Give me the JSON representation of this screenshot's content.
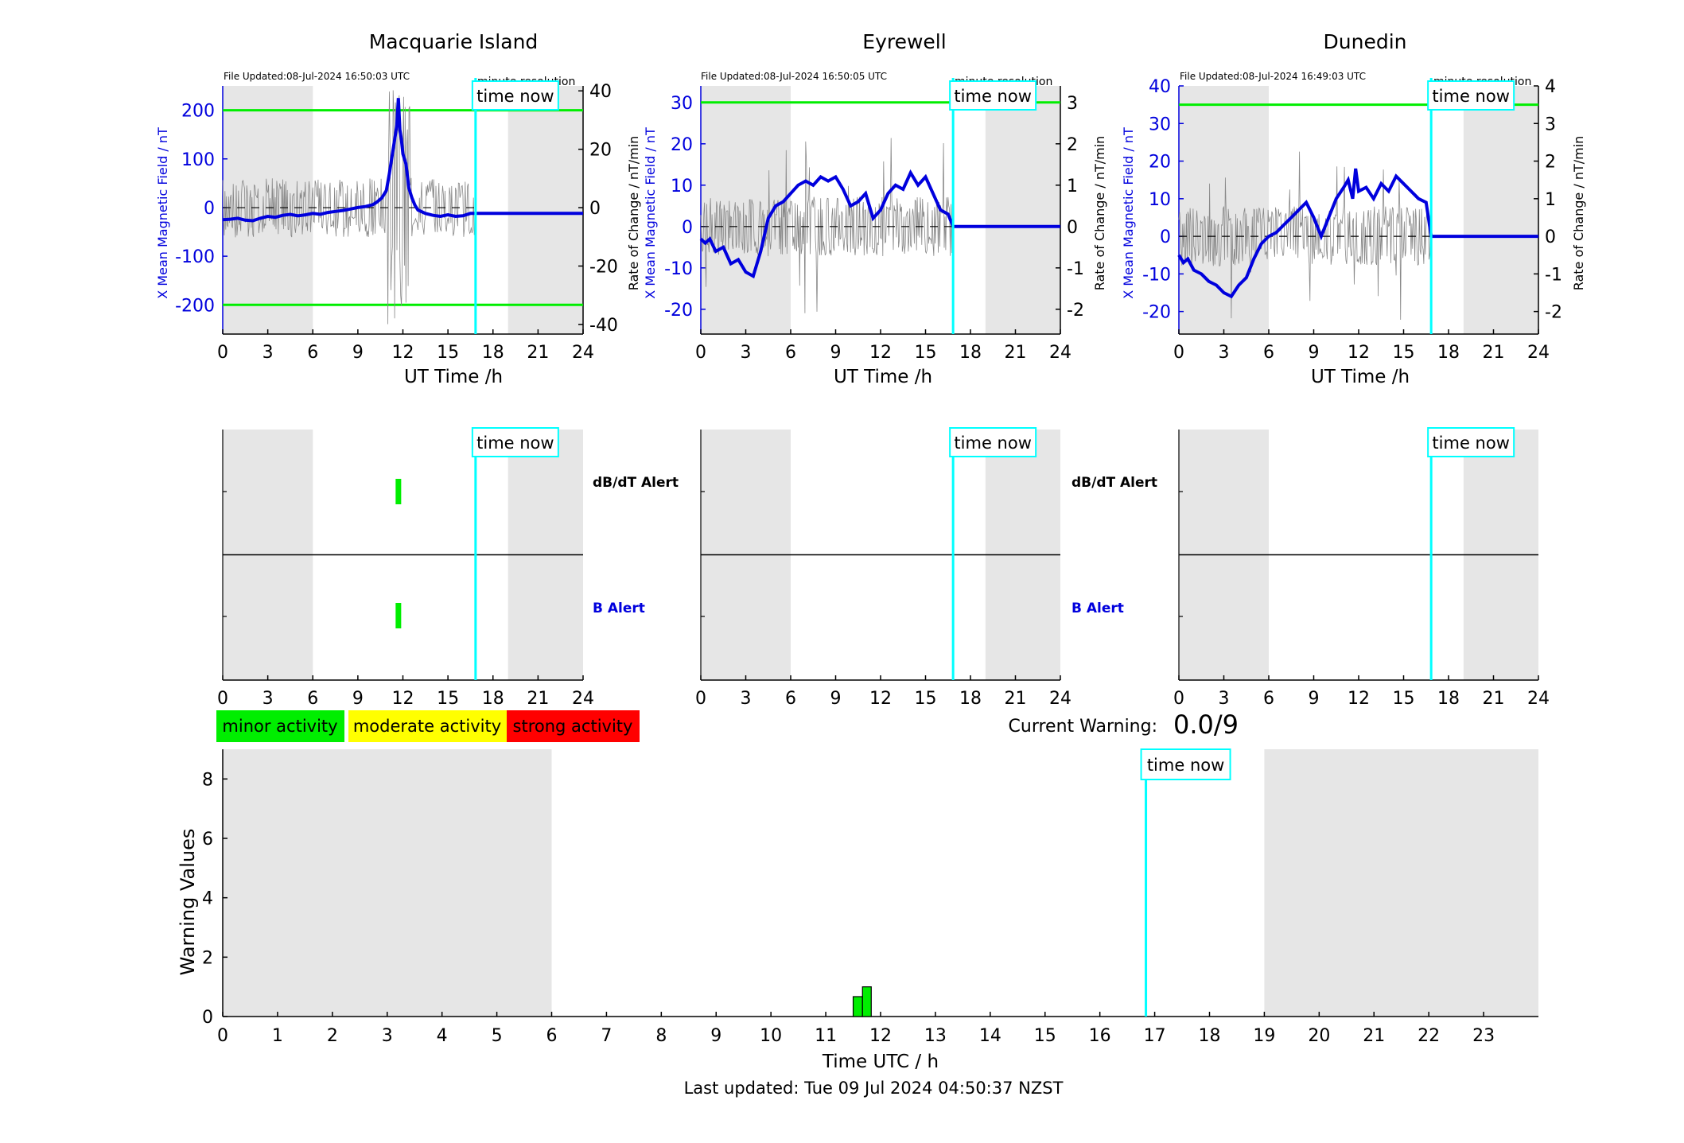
{
  "colors": {
    "blue": "#0000dd",
    "green": "#00ee00",
    "cyan": "#00ffff",
    "gray_shade": "#e6e6e6",
    "yellow": "#ffff00",
    "red": "#ff0000",
    "black": "#000000"
  },
  "common": {
    "x_label": "UT Time /h",
    "x_ticks": [
      "0",
      "3",
      "6",
      "9",
      "12",
      "15",
      "18",
      "21",
      "24"
    ],
    "left_axis_label": "X Mean Magnetic Field / nT",
    "right_axis_label": "Rate of Change / nT/min",
    "resolution_label": "minute resolution",
    "time_now_label": "time now",
    "time_now_hour": 16.84,
    "dbdt_alert_label": "dB/dT Alert",
    "b_alert_label": "B Alert"
  },
  "chart_data": [
    {
      "type": "line",
      "station": "Macquarie Island",
      "file_updated": "File Updated:08-Jul-2024 16:50:03 UTC",
      "xlim": [
        0,
        24
      ],
      "ylim": [
        -260,
        250
      ],
      "y_ticks": [
        "200",
        "100",
        "0",
        "-100",
        "-200"
      ],
      "y_tick_values": [
        200,
        100,
        0,
        -100,
        -200
      ],
      "ylim_right": [
        -43.3,
        41.7
      ],
      "right_ticks": [
        "40",
        "20",
        "0",
        "-20",
        "-40"
      ],
      "right_tick_values": [
        40,
        20,
        0,
        -20,
        -40
      ],
      "threshold_lines": [
        200,
        -200
      ],
      "night_shading": [
        [
          0,
          6
        ],
        [
          19,
          24
        ]
      ],
      "series": [
        {
          "axis": "left",
          "x": [
            0,
            0.5,
            1,
            1.5,
            2,
            2.5,
            3,
            3.5,
            4,
            4.5,
            5,
            5.5,
            6,
            6.5,
            7,
            7.5,
            8,
            8.5,
            9,
            9.5,
            10,
            10.3,
            10.6,
            10.9,
            11.1,
            11.3,
            11.5,
            11.6,
            11.7,
            11.8,
            11.9,
            12,
            12.2,
            12.4,
            12.6,
            12.8,
            13,
            13.5,
            14,
            14.5,
            15,
            15.5,
            16,
            16.5,
            16.84,
            24
          ],
          "values": [
            -25,
            -24,
            -22,
            -26,
            -27,
            -22,
            -18,
            -20,
            -16,
            -14,
            -17,
            -15,
            -12,
            -14,
            -10,
            -8,
            -6,
            -3,
            0,
            2,
            6,
            12,
            20,
            35,
            70,
            110,
            150,
            170,
            225,
            160,
            140,
            110,
            90,
            40,
            20,
            5,
            -5,
            -12,
            -16,
            -18,
            -15,
            -18,
            -17,
            -12,
            -12,
            -12
          ]
        }
      ],
      "alerts": {
        "dbdt_hours": [
          11.7
        ],
        "b_hours": [
          11.7
        ]
      }
    },
    {
      "type": "line",
      "station": "Eyrewell",
      "file_updated": "File Updated:08-Jul-2024 16:50:05 UTC",
      "xlim": [
        0,
        24
      ],
      "ylim": [
        -26,
        34
      ],
      "y_ticks": [
        "30",
        "20",
        "10",
        "0",
        "-10",
        "-20"
      ],
      "y_tick_values": [
        30,
        20,
        10,
        0,
        -10,
        -20
      ],
      "ylim_right": [
        -2.6,
        3.4
      ],
      "right_ticks": [
        "3",
        "2",
        "1",
        "0",
        "-1",
        "-2"
      ],
      "right_tick_values": [
        3,
        2,
        1,
        0,
        -1,
        -2
      ],
      "threshold_lines": [
        30
      ],
      "night_shading": [
        [
          0,
          6
        ],
        [
          19,
          24
        ]
      ],
      "series": [
        {
          "axis": "left",
          "x": [
            0,
            0.3,
            0.6,
            1,
            1.5,
            2,
            2.5,
            3,
            3.5,
            4,
            4.5,
            5,
            5.5,
            6,
            6.5,
            7,
            7.5,
            8,
            8.5,
            9,
            9.5,
            10,
            10.5,
            11,
            11.5,
            12,
            12.5,
            13,
            13.5,
            14,
            14.5,
            15,
            15.5,
            16,
            16.5,
            16.84,
            24
          ],
          "values": [
            -3,
            -4,
            -3,
            -6,
            -5,
            -9,
            -8,
            -11,
            -12,
            -6,
            2,
            5,
            6,
            8,
            10,
            11,
            10,
            12,
            11,
            12,
            9,
            5,
            6,
            8,
            2,
            4,
            8,
            10,
            9,
            13,
            10,
            12,
            8,
            4,
            3,
            0,
            0
          ]
        }
      ],
      "alerts": {
        "dbdt_hours": [],
        "b_hours": []
      }
    },
    {
      "type": "line",
      "station": "Dunedin",
      "file_updated": "File Updated:08-Jul-2024 16:49:03 UTC",
      "xlim": [
        0,
        24
      ],
      "ylim": [
        -26,
        40
      ],
      "y_ticks": [
        "40",
        "30",
        "20",
        "10",
        "0",
        "-10",
        "-20"
      ],
      "y_tick_values": [
        40,
        30,
        20,
        10,
        0,
        -10,
        -20
      ],
      "ylim_right": [
        -2.6,
        4.0
      ],
      "right_ticks": [
        "4",
        "3",
        "2",
        "1",
        "0",
        "-1",
        "-2"
      ],
      "right_tick_values": [
        4,
        3,
        2,
        1,
        0,
        -1,
        -2
      ],
      "threshold_lines": [
        35
      ],
      "night_shading": [
        [
          0,
          6
        ],
        [
          19,
          24
        ]
      ],
      "series": [
        {
          "axis": "left",
          "x": [
            0,
            0.3,
            0.6,
            1,
            1.5,
            2,
            2.5,
            3,
            3.5,
            4,
            4.5,
            5,
            5.5,
            6,
            6.5,
            7,
            7.5,
            8,
            8.5,
            9,
            9.5,
            10,
            10.5,
            11,
            11.3,
            11.6,
            11.8,
            12,
            12.5,
            13,
            13.5,
            14,
            14.5,
            15,
            15.5,
            16,
            16.5,
            16.84,
            24
          ],
          "values": [
            -5,
            -7,
            -6,
            -9,
            -10,
            -12,
            -13,
            -15,
            -16,
            -13,
            -11,
            -6,
            -2,
            0,
            1,
            3,
            5,
            7,
            9,
            5,
            0,
            5,
            10,
            13,
            15,
            10,
            18,
            12,
            13,
            10,
            14,
            12,
            16,
            14,
            12,
            10,
            9,
            0,
            0
          ]
        }
      ],
      "alerts": {
        "dbdt_hours": [],
        "b_hours": []
      }
    },
    {
      "type": "bar",
      "title": "Warning Values",
      "xlabel": "Time UTC / h",
      "ylabel": "Warning Values",
      "xlim": [
        0,
        24
      ],
      "ylim": [
        0,
        9
      ],
      "x_ticks": [
        "0",
        "1",
        "2",
        "3",
        "4",
        "5",
        "6",
        "7",
        "8",
        "9",
        "10",
        "11",
        "12",
        "13",
        "14",
        "15",
        "16",
        "17",
        "18",
        "19",
        "20",
        "21",
        "22",
        "23"
      ],
      "y_ticks": [
        "0",
        "2",
        "4",
        "6",
        "8"
      ],
      "y_tick_values": [
        0,
        2,
        4,
        6,
        8
      ],
      "night_shading": [
        [
          0,
          6
        ],
        [
          19,
          24
        ]
      ],
      "bars": [
        {
          "start": 11.5,
          "end": 11.67,
          "value": 0.67
        },
        {
          "start": 11.67,
          "end": 11.83,
          "value": 1.0
        }
      ],
      "legend": [
        "minor activity",
        "moderate activity",
        "strong activity"
      ],
      "current_warning_label": "Current Warning:",
      "current_warning_value": "0.0/9",
      "last_updated": "Last updated: Tue 09 Jul 2024 04:50:37 NZST"
    }
  ]
}
